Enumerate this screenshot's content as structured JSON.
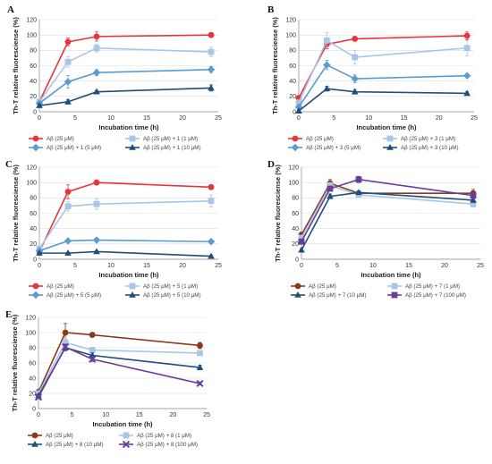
{
  "chart_data": [
    {
      "type": "line",
      "panel_label": "A",
      "xlabel": "Incubation time (h)",
      "ylabel": "Th-T relative fluoresciense (%)",
      "xlim": [
        0,
        25
      ],
      "ylim": [
        0,
        120
      ],
      "xticks": [
        0,
        5,
        10,
        15,
        20,
        25
      ],
      "yticks": [
        0,
        20,
        40,
        60,
        80,
        100,
        120
      ],
      "grid": true,
      "legend_position": "bottom",
      "x": [
        0,
        4,
        8,
        24
      ],
      "series": [
        {
          "name": "Aβ (25 μM)",
          "color": "#e8343c",
          "marker": "circle",
          "values": [
            13,
            91,
            98,
            100
          ],
          "errors": [
            2,
            5,
            6,
            2
          ]
        },
        {
          "name": "Aβ (25 μM) + 1 (1 μM)",
          "color": "#a9c6e8",
          "marker": "square",
          "values": [
            13,
            65,
            83,
            78
          ],
          "errors": [
            2,
            7,
            5,
            6
          ]
        },
        {
          "name": "Aβ (25 μM) + 1 (5 μM)",
          "color": "#5a9bd0",
          "marker": "diamond",
          "values": [
            11,
            39,
            51,
            55
          ],
          "errors": [
            2,
            8,
            4,
            4
          ]
        },
        {
          "name": "Aβ (25 μM) + 1 (10 μM)",
          "color": "#1f4e79",
          "marker": "triangle",
          "values": [
            8,
            13,
            26,
            31
          ],
          "errors": [
            2,
            3,
            2,
            4
          ]
        }
      ]
    },
    {
      "type": "line",
      "panel_label": "B",
      "xlabel": "Incubation time (h)",
      "ylabel": "Th-T relative fluoresciense (%)",
      "xlim": [
        0,
        25
      ],
      "ylim": [
        0,
        120
      ],
      "xticks": [
        0,
        5,
        10,
        15,
        20,
        25
      ],
      "yticks": [
        0,
        20,
        40,
        60,
        80,
        100,
        120
      ],
      "grid": true,
      "legend_position": "bottom",
      "x": [
        0,
        4,
        8,
        24
      ],
      "series": [
        {
          "name": "Aβ (25 μM)",
          "color": "#e8343c",
          "marker": "circle",
          "values": [
            18,
            88,
            95,
            99
          ],
          "errors": [
            3,
            6,
            2,
            5
          ]
        },
        {
          "name": "Aβ (25 μM) + 3 (1 μM)",
          "color": "#a9c6e8",
          "marker": "square",
          "values": [
            12,
            93,
            71,
            83
          ],
          "errors": [
            3,
            10,
            9,
            10
          ]
        },
        {
          "name": "Aβ (25 μM) + 3 (5 μM)",
          "color": "#5a9bd0",
          "marker": "diamond",
          "values": [
            6,
            61,
            43,
            47
          ],
          "errors": [
            2,
            6,
            5,
            2
          ]
        },
        {
          "name": "Aβ (25 μM) + 3 (10 μM)",
          "color": "#1f4e79",
          "marker": "triangle",
          "values": [
            1,
            30,
            26,
            24
          ],
          "errors": [
            1,
            3,
            3,
            2
          ]
        }
      ]
    },
    {
      "type": "line",
      "panel_label": "C",
      "xlabel": "Incubation time (h)",
      "ylabel": "Th-T relative fluoresciense (%)",
      "xlim": [
        0,
        25
      ],
      "ylim": [
        0,
        120
      ],
      "xticks": [
        0,
        5,
        10,
        15,
        20,
        25
      ],
      "yticks": [
        0,
        20,
        40,
        60,
        80,
        100,
        120
      ],
      "grid": true,
      "legend_position": "bottom",
      "x": [
        0,
        4,
        8,
        24
      ],
      "series": [
        {
          "name": "Aβ (25 μM)",
          "color": "#e8343c",
          "marker": "circle",
          "values": [
            10,
            88,
            100,
            94
          ],
          "errors": [
            2,
            9,
            2,
            2
          ]
        },
        {
          "name": "Aβ (25 μM) + 5 (1 μM)",
          "color": "#a9c6e8",
          "marker": "square",
          "values": [
            14,
            69,
            72,
            76
          ],
          "errors": [
            3,
            6,
            7,
            8
          ]
        },
        {
          "name": "Aβ (25 μM) + 5 (5 μM)",
          "color": "#5a9bd0",
          "marker": "diamond",
          "values": [
            11,
            24,
            25,
            23
          ],
          "errors": [
            2,
            2,
            2,
            2
          ]
        },
        {
          "name": "Aβ (25 μM) + 5 (10 μM)",
          "color": "#1f4e79",
          "marker": "triangle",
          "values": [
            8,
            8,
            10,
            4
          ],
          "errors": [
            1,
            1,
            1,
            1
          ]
        }
      ]
    },
    {
      "type": "line",
      "panel_label": "D",
      "xlabel": "Incubation time (h)",
      "ylabel": "Th-T relative fluoresciense (%)",
      "xlim": [
        0,
        25
      ],
      "ylim": [
        0,
        120
      ],
      "xticks": [
        0,
        5,
        10,
        15,
        20,
        25
      ],
      "yticks": [
        0,
        20,
        40,
        60,
        80,
        100,
        120
      ],
      "grid": true,
      "legend_position": "bottom",
      "x": [
        0,
        4,
        8,
        24
      ],
      "series": [
        {
          "name": "Aβ (25 μM)",
          "color": "#8b3a1a",
          "marker": "circle",
          "values": [
            32,
            99,
            86,
            86
          ],
          "errors": [
            3,
            5,
            3,
            5
          ]
        },
        {
          "name": "Aβ (25 μM) + 7 (1 μM)",
          "color": "#a9c6e8",
          "marker": "square",
          "values": [
            28,
            96,
            84,
            72
          ],
          "errors": [
            3,
            4,
            3,
            4
          ]
        },
        {
          "name": "Aβ (25 μM) + 7 (10 μM)",
          "color": "#1f4e79",
          "marker": "triangle",
          "values": [
            12,
            82,
            87,
            77
          ],
          "errors": [
            2,
            3,
            2,
            3
          ]
        },
        {
          "name": "Aβ (25 μM) + 7 (100 μM)",
          "color": "#6a3d9a",
          "marker": "square",
          "values": [
            23,
            92,
            104,
            83
          ],
          "errors": [
            3,
            3,
            4,
            4
          ]
        }
      ]
    },
    {
      "type": "line",
      "panel_label": "E",
      "xlabel": "Incubation time (h)",
      "ylabel": "Th-T relative fluoresciense (%)",
      "xlim": [
        0,
        25
      ],
      "ylim": [
        0,
        120
      ],
      "xticks": [
        0,
        5,
        10,
        15,
        20,
        25
      ],
      "yticks": [
        0,
        20,
        40,
        60,
        80,
        100,
        120
      ],
      "grid": true,
      "legend_position": "bottom",
      "x": [
        0,
        4,
        8,
        24
      ],
      "series": [
        {
          "name": "Aβ (25 μM)",
          "color": "#8b3a1a",
          "marker": "circle",
          "values": [
            22,
            100,
            97,
            83
          ],
          "errors": [
            3,
            12,
            3,
            4
          ]
        },
        {
          "name": "Aβ (25 μM) + 8 (1 μM)",
          "color": "#a9c6e8",
          "marker": "square",
          "values": [
            20,
            87,
            77,
            73
          ],
          "errors": [
            3,
            5,
            3,
            3
          ]
        },
        {
          "name": "Aβ (25 μM) + 8 (10 μM)",
          "color": "#1f4e79",
          "marker": "triangle",
          "values": [
            17,
            80,
            70,
            54
          ],
          "errors": [
            2,
            4,
            3,
            3
          ]
        },
        {
          "name": "Aβ (25 μM) + 8 (100 μM)",
          "color": "#6a3d9a",
          "marker": "x",
          "values": [
            15,
            81,
            65,
            33
          ],
          "errors": [
            2,
            4,
            3,
            2
          ]
        }
      ]
    }
  ]
}
